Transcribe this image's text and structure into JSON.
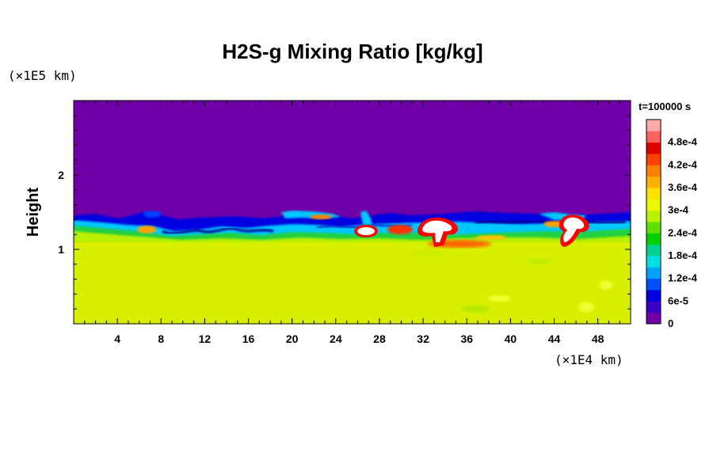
{
  "chart_data": {
    "type": "heatmap",
    "title": "H2S-g Mixing Ratio [kg/kg]",
    "ylabel": "Height",
    "x_multiplier": "(×1E4 km)",
    "y_multiplier": "(×1E5 km)",
    "time_label": "t=100000 s",
    "x_range": [
      0,
      51
    ],
    "y_range": [
      0,
      3
    ],
    "x_ticks": [
      4,
      8,
      12,
      16,
      20,
      24,
      28,
      32,
      36,
      40,
      44,
      48
    ],
    "y_ticks": [
      1,
      2
    ],
    "colorbar": {
      "labels": [
        "0",
        "6e-5",
        "1.2e-4",
        "1.8e-4",
        "2.4e-4",
        "3e-4",
        "3.6e-4",
        "4.2e-4",
        "4.8e-4"
      ],
      "colors": [
        "#7000a8",
        "#3d00c8",
        "#0000e0",
        "#0050ff",
        "#00a0ff",
        "#00e0e0",
        "#00d090",
        "#00d000",
        "#60e000",
        "#b8f000",
        "#ecf800",
        "#ffe000",
        "#ffb000",
        "#ff8000",
        "#ff4000",
        "#e00000",
        "#ff6060",
        "#ffa8a8"
      ]
    },
    "field_summary": {
      "upper_region_value": 0,
      "lower_region_value": 0.00035,
      "interface_height": [
        1.3,
        1.55
      ],
      "peak_regions_x": [
        27,
        33,
        46
      ],
      "peak_value_min": 0.00048
    }
  }
}
